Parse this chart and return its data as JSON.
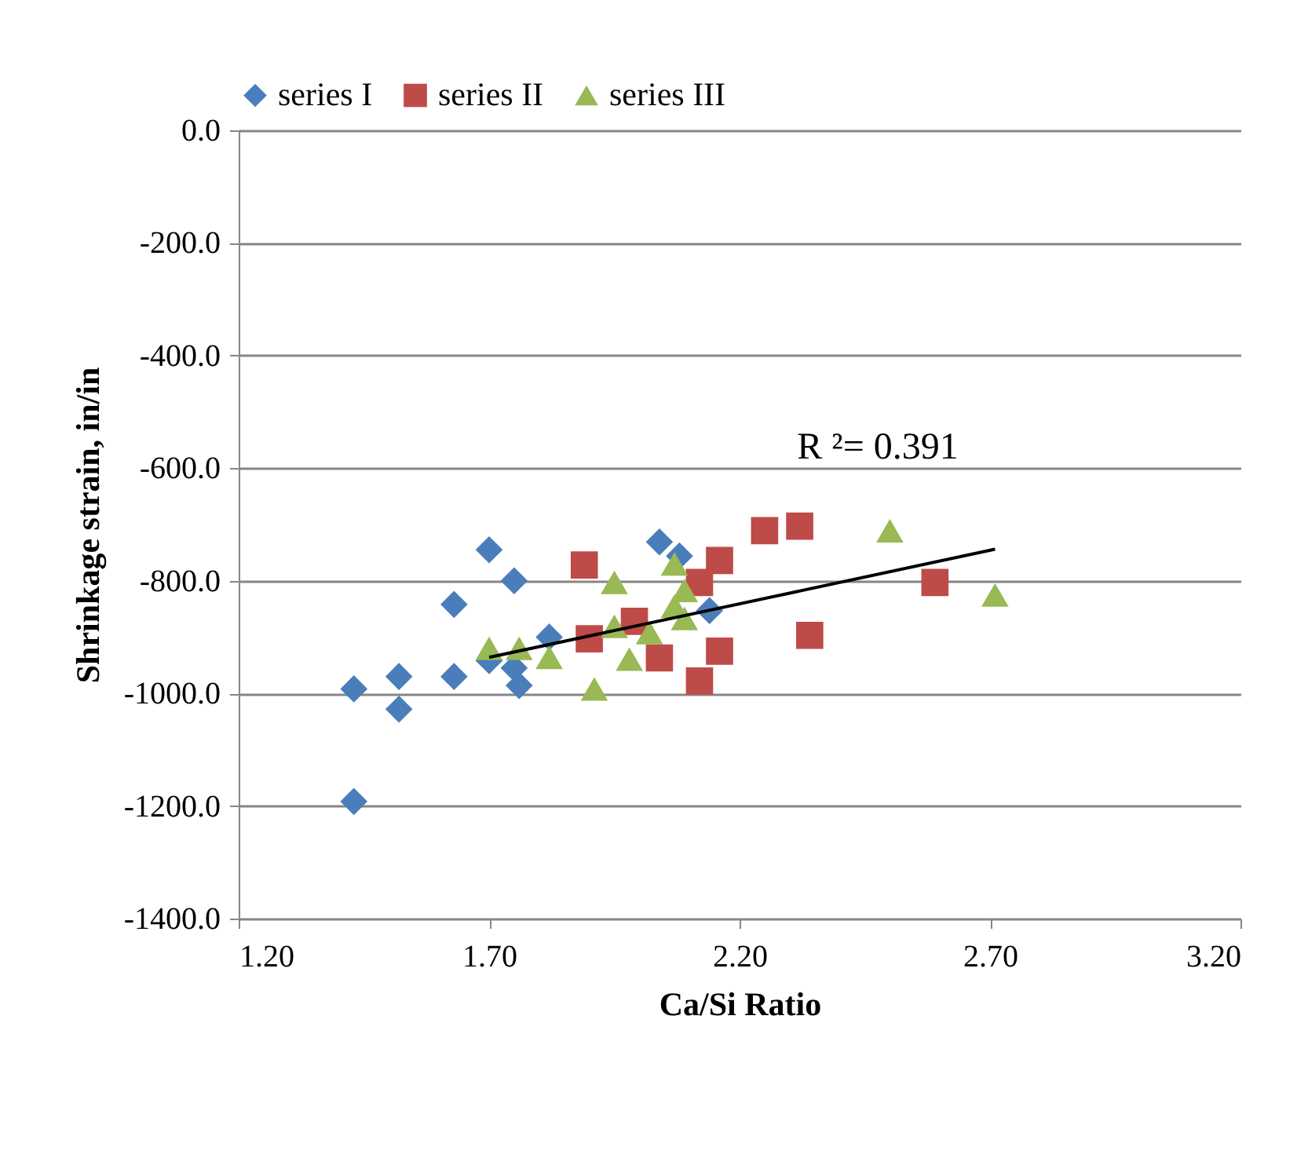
{
  "chart_data": {
    "type": "scatter",
    "xlabel": "Ca/Si Ratio",
    "ylabel": "Shrinkage strain, in/in",
    "xlim": [
      1.2,
      3.2
    ],
    "ylim": [
      -1400,
      0
    ],
    "xticks": [
      {
        "value": 1.2,
        "label": "1.20"
      },
      {
        "value": 1.7,
        "label": "1.70"
      },
      {
        "value": 2.2,
        "label": "2.20"
      },
      {
        "value": 2.7,
        "label": "2.70"
      },
      {
        "value": 3.2,
        "label": "3.20"
      }
    ],
    "yticks": [
      {
        "value": 0,
        "label": "0.0"
      },
      {
        "value": -200,
        "label": "-200.0"
      },
      {
        "value": -400,
        "label": "-400.0"
      },
      {
        "value": -600,
        "label": "-600.0"
      },
      {
        "value": -800,
        "label": "-800.0"
      },
      {
        "value": -1000,
        "label": "-1000.0"
      },
      {
        "value": -1200,
        "label": "-1200.0"
      },
      {
        "value": -1400,
        "label": "-1400.0"
      }
    ],
    "grid": "y",
    "legend": "top",
    "series": [
      {
        "name": "series I",
        "color": "#4a7ebb",
        "marker": "diamond",
        "x": [
          1.43,
          1.43,
          1.52,
          1.52,
          1.63,
          1.63,
          1.7,
          1.75,
          1.7,
          1.75,
          1.76,
          1.82,
          2.04,
          2.08,
          2.14
        ],
        "values": [
          -992,
          -1192,
          -970,
          -1028,
          -842,
          -970,
          -745,
          -800,
          -942,
          -955,
          -986,
          -900,
          -731,
          -756,
          -853
        ]
      },
      {
        "name": "series II",
        "color": "#be4b48",
        "marker": "square",
        "x": [
          1.89,
          1.9,
          1.99,
          2.04,
          2.16,
          2.12,
          2.16,
          2.12,
          2.25,
          2.32,
          2.34,
          2.59
        ],
        "values": [
          -772,
          -903,
          -872,
          -937,
          -764,
          -803,
          -925,
          -978,
          -711,
          -703,
          -897,
          -803
        ]
      },
      {
        "name": "series III",
        "color": "#98b954",
        "marker": "triangle",
        "x": [
          1.7,
          1.76,
          1.82,
          1.95,
          1.95,
          1.91,
          1.98,
          2.02,
          2.07,
          2.09,
          2.09,
          2.07,
          2.5,
          2.71
        ],
        "values": [
          -920,
          -920,
          -936,
          -803,
          -881,
          -992,
          -939,
          -892,
          -770,
          -817,
          -867,
          -845,
          -711,
          -825
        ]
      },
      {
        "type": "line",
        "color": "#000000",
        "marker": "none",
        "x": [
          1.7,
          2.71
        ],
        "values": [
          -936,
          -744
        ]
      }
    ],
    "annotations": [
      "R ²= 0.391"
    ]
  }
}
